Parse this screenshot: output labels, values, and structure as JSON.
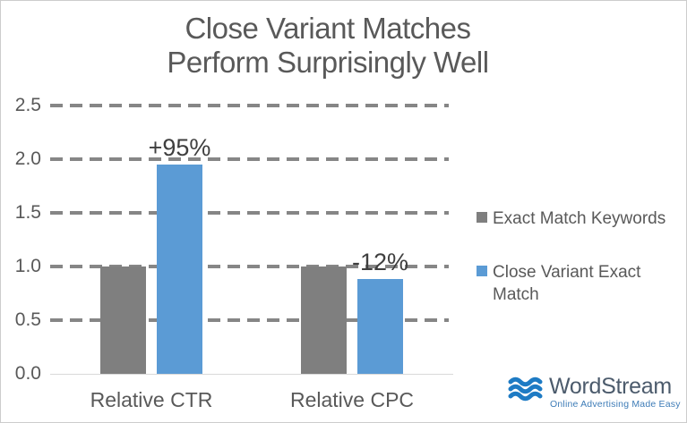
{
  "title": {
    "text": "Close Variant Matches\nPerform Surprisingly Well"
  },
  "chart_data": {
    "type": "bar",
    "categories": [
      "Relative CTR",
      "Relative CPC"
    ],
    "series": [
      {
        "name": "Exact Match Keywords",
        "color": "#7f7f7f",
        "values": [
          1.0,
          1.0
        ]
      },
      {
        "name": "Close Variant Exact Match",
        "color": "#5b9bd5",
        "values": [
          1.95,
          0.88
        ]
      }
    ],
    "annotations": [
      {
        "text": "+95%",
        "category_index": 0,
        "series_index": 1
      },
      {
        "text": "-12%",
        "category_index": 1,
        "series_index": 1
      }
    ],
    "yticks": [
      "0.0",
      "0.5",
      "1.0",
      "1.5",
      "2.0",
      "2.5"
    ],
    "ylim": [
      0,
      2.5
    ],
    "grid": "horizontal-dashed",
    "legend_position": "right"
  },
  "legend": {
    "items": [
      {
        "label": "Exact Match Keywords",
        "color": "#7f7f7f"
      },
      {
        "label": "Close Variant Exact Match",
        "color": "#5b9bd5"
      }
    ]
  },
  "logo": {
    "name": "WordStream",
    "tagline": "Online Advertising Made Easy",
    "icon": "waves-icon",
    "icon_color": "#1e7bc4",
    "text_color": "#4c5b6c",
    "tagline_color": "#3e7cb7"
  },
  "colors": {
    "title_text": "#595959",
    "axis_text": "#595959",
    "data_label_text": "#3f3f3f",
    "gridline": "#868686",
    "baseline": "#d9d9d9",
    "background": "#ffffff",
    "border": "#cccccc"
  }
}
